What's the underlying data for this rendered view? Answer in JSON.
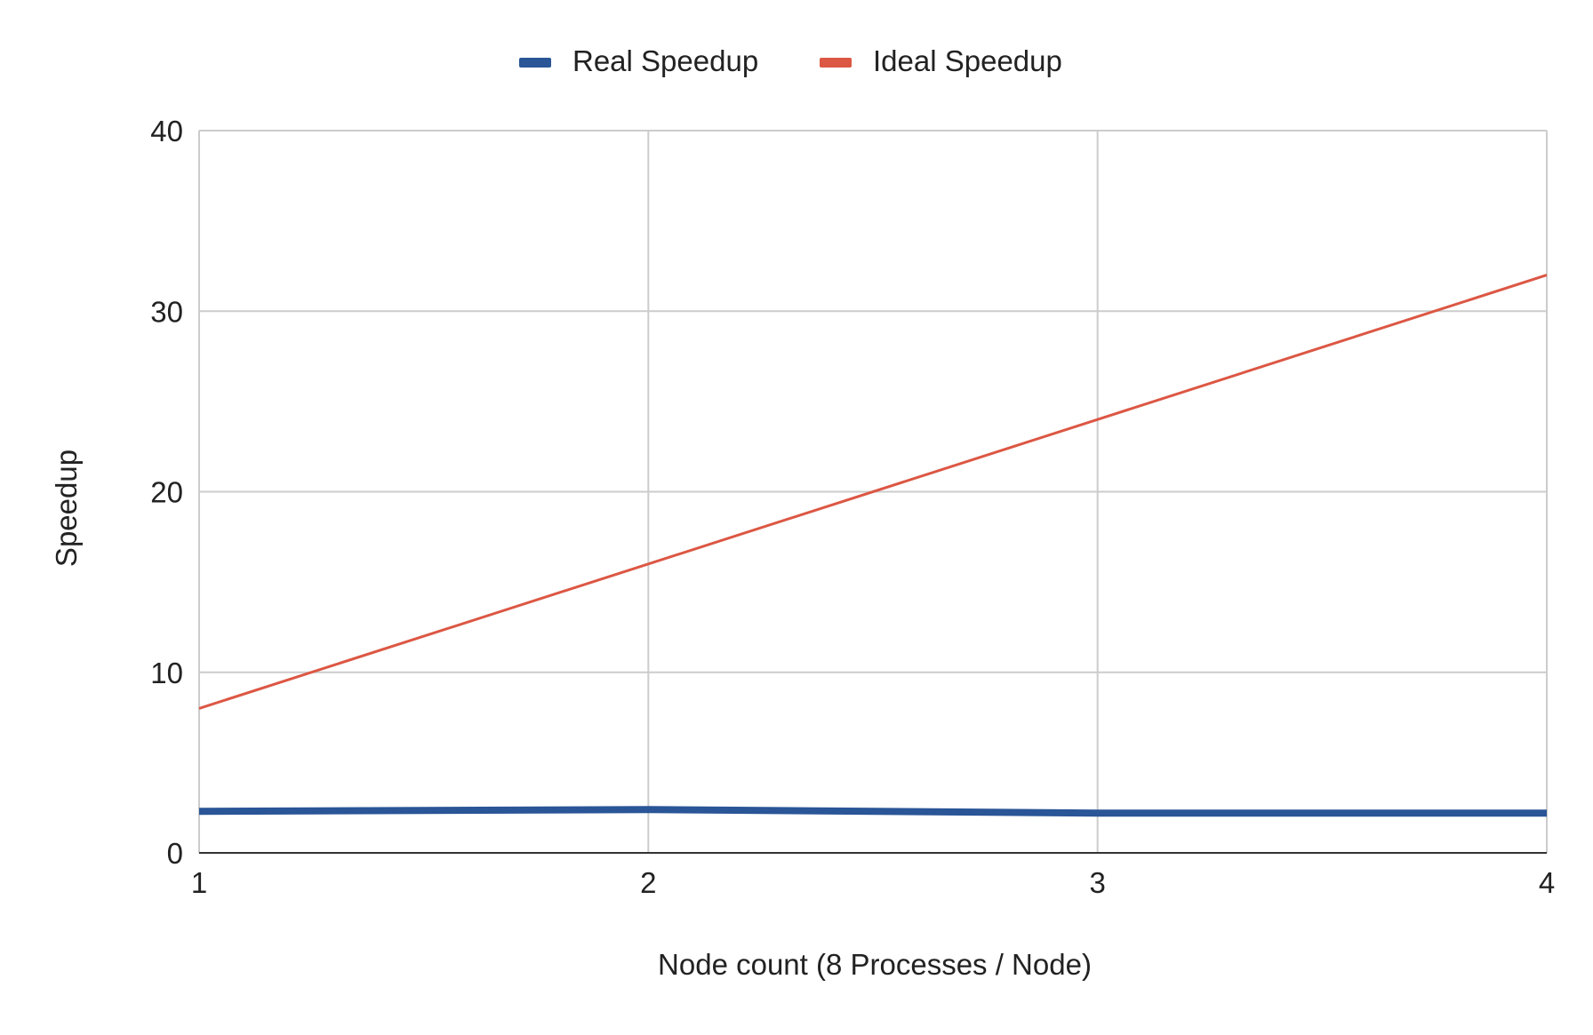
{
  "chart_data": {
    "type": "line",
    "title": "",
    "xlabel": "Node count (8 Processes / Node)",
    "ylabel": "Speedup",
    "categories": [
      1,
      2,
      3,
      4
    ],
    "x_ticks": [
      "1",
      "2",
      "3",
      "4"
    ],
    "y_ticks": [
      "0",
      "10",
      "20",
      "30",
      "40"
    ],
    "ylim": [
      0,
      40
    ],
    "xlim": [
      1,
      4
    ],
    "grid": true,
    "legend_position": "top-center",
    "series": [
      {
        "name": "Real Speedup",
        "color": "#2a5597",
        "values": [
          2.3,
          2.4,
          2.2,
          2.2
        ]
      },
      {
        "name": "Ideal Speedup",
        "color": "#dc5744",
        "values": [
          8,
          16,
          24,
          32
        ]
      }
    ]
  }
}
